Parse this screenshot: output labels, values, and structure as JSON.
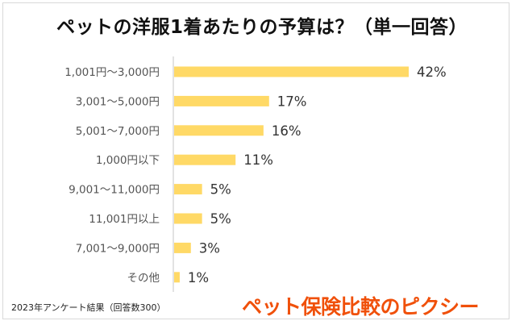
{
  "title": "ペットの洋服1着あたりの予算は？（単一回答）",
  "footnote": "2023年アンケート結果（回答数300）",
  "brand": "ペット保険比較のピクシー",
  "colors": {
    "bar": "#ffd966",
    "axis": "#d9d9d9",
    "brand": "#f0500a"
  },
  "chart_data": {
    "type": "bar",
    "orientation": "horizontal",
    "title": "ペットの洋服1着あたりの予算は？（単一回答）",
    "xlabel": "",
    "ylabel": "",
    "xlim": [
      0,
      42
    ],
    "grid": false,
    "categories": [
      "1,001円～3,000円",
      "3,001～5,000円",
      "5,001～7,000円",
      "1,000円以下",
      "9,001～11,000円",
      "11,001円以上",
      "7,001～9,000円",
      "その他"
    ],
    "values": [
      42,
      17,
      16,
      11,
      5,
      5,
      3,
      1
    ],
    "value_labels": [
      "42%",
      "17%",
      "16%",
      "11%",
      "5%",
      "5%",
      "3%",
      "1%"
    ]
  }
}
